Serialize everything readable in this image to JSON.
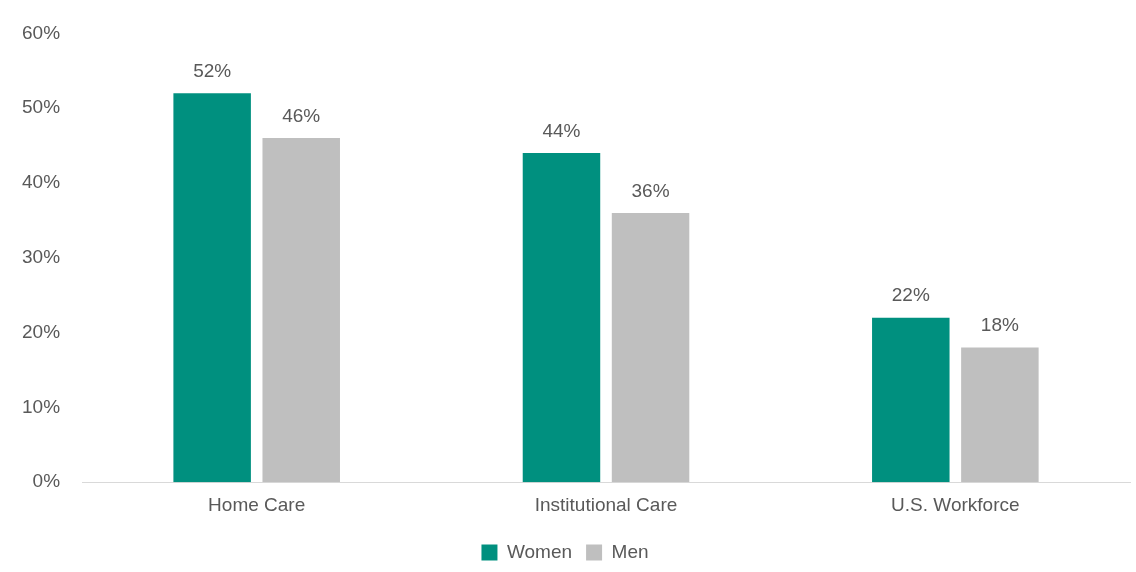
{
  "chart_data": {
    "type": "bar",
    "categories": [
      "Home Care",
      "Institutional Care",
      "U.S. Workforce"
    ],
    "series": [
      {
        "name": "Women",
        "color": "#00907f",
        "values": [
          52,
          44,
          22
        ],
        "value_labels": [
          "52%",
          "44%",
          "22%"
        ]
      },
      {
        "name": "Men",
        "color": "#bfbfbf",
        "values": [
          46,
          36,
          18
        ],
        "value_labels": [
          "46%",
          "36%",
          "18%"
        ]
      }
    ],
    "ylim": [
      0,
      60
    ],
    "yticks": [
      {
        "value": 0,
        "label": "0%"
      },
      {
        "value": 10,
        "label": "10%"
      },
      {
        "value": 20,
        "label": "20%"
      },
      {
        "value": 30,
        "label": "30%"
      },
      {
        "value": 40,
        "label": "40%"
      },
      {
        "value": 50,
        "label": "50%"
      },
      {
        "value": 60,
        "label": "60%"
      }
    ],
    "grid": false,
    "legend": "bottom"
  }
}
